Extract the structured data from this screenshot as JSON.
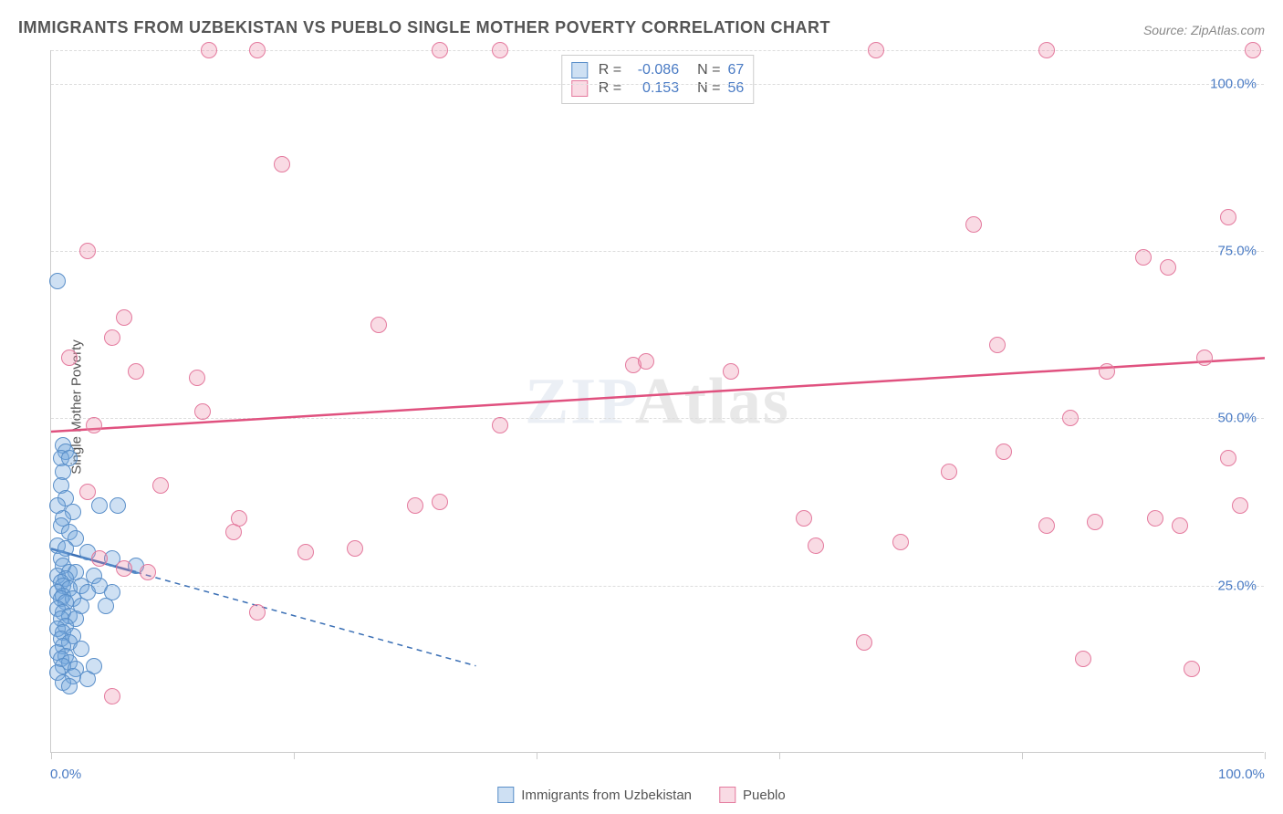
{
  "title": "IMMIGRANTS FROM UZBEKISTAN VS PUEBLO SINGLE MOTHER POVERTY CORRELATION CHART",
  "source": "Source: ZipAtlas.com",
  "y_axis_label": "Single Mother Poverty",
  "watermark_zip": "ZIP",
  "watermark_atlas": "Atlas",
  "chart": {
    "type": "scatter",
    "xlim": [
      0,
      100
    ],
    "ylim": [
      0,
      105
    ],
    "x_tick_labels": [
      {
        "pos": 0,
        "text": "0.0%"
      },
      {
        "pos": 100,
        "text": "100.0%"
      }
    ],
    "x_major_ticks": [
      0,
      20,
      40,
      60,
      80,
      100
    ],
    "y_gridlines": [
      25,
      50,
      75,
      100,
      105
    ],
    "y_tick_labels": [
      {
        "pos": 25,
        "text": "25.0%"
      },
      {
        "pos": 50,
        "text": "50.0%"
      },
      {
        "pos": 75,
        "text": "75.0%"
      },
      {
        "pos": 100,
        "text": "100.0%"
      }
    ],
    "background_color": "#ffffff",
    "grid_color": "#dddddd",
    "axis_color": "#cccccc",
    "tick_label_color": "#4a7bc4",
    "title_color": "#555555",
    "title_fontsize": 18,
    "label_fontsize": 15,
    "marker_radius": 9,
    "series": [
      {
        "name": "Immigrants from Uzbekistan",
        "fill": "rgba(115, 165, 220, 0.35)",
        "stroke": "#5a8fc9",
        "R": "-0.086",
        "N": "67",
        "trend": {
          "y_start": 30.5,
          "y_end": 27,
          "x_start": 0,
          "x_end": 7,
          "extrapolate_to": 35,
          "color": "#3a6fb5",
          "dash": true
        },
        "points": [
          [
            0.5,
            70.5
          ],
          [
            1.0,
            46
          ],
          [
            1.2,
            45
          ],
          [
            0.8,
            44
          ],
          [
            1.5,
            44
          ],
          [
            1.0,
            42
          ],
          [
            0.8,
            40
          ],
          [
            1.2,
            38
          ],
          [
            0.5,
            37
          ],
          [
            1.8,
            36
          ],
          [
            5.5,
            37
          ],
          [
            4.0,
            37
          ],
          [
            1.0,
            35
          ],
          [
            0.8,
            34
          ],
          [
            1.5,
            33
          ],
          [
            2.0,
            32
          ],
          [
            0.5,
            31
          ],
          [
            1.2,
            30.5
          ],
          [
            3.0,
            30
          ],
          [
            5.0,
            29
          ],
          [
            7.0,
            28
          ],
          [
            0.8,
            29
          ],
          [
            1.0,
            28
          ],
          [
            1.5,
            27
          ],
          [
            2.0,
            27
          ],
          [
            0.5,
            26.5
          ],
          [
            3.5,
            26.5
          ],
          [
            1.2,
            26
          ],
          [
            0.8,
            25.5
          ],
          [
            1.0,
            25
          ],
          [
            2.5,
            25
          ],
          [
            4.0,
            25
          ],
          [
            1.5,
            24.5
          ],
          [
            0.5,
            24
          ],
          [
            3.0,
            24
          ],
          [
            5.0,
            24
          ],
          [
            1.0,
            23.5
          ],
          [
            0.8,
            23
          ],
          [
            1.8,
            23
          ],
          [
            1.2,
            22.5
          ],
          [
            2.5,
            22
          ],
          [
            4.5,
            22
          ],
          [
            0.5,
            21.5
          ],
          [
            1.0,
            21
          ],
          [
            1.5,
            20.5
          ],
          [
            0.8,
            20
          ],
          [
            2.0,
            20
          ],
          [
            1.2,
            19
          ],
          [
            0.5,
            18.5
          ],
          [
            1.0,
            18
          ],
          [
            1.8,
            17.5
          ],
          [
            0.8,
            17
          ],
          [
            1.5,
            16.5
          ],
          [
            1.0,
            16
          ],
          [
            2.5,
            15.5
          ],
          [
            0.5,
            15
          ],
          [
            1.2,
            14.5
          ],
          [
            0.8,
            14
          ],
          [
            1.5,
            13.5
          ],
          [
            1.0,
            13
          ],
          [
            2.0,
            12.5
          ],
          [
            0.5,
            12
          ],
          [
            1.8,
            11.5
          ],
          [
            3.0,
            11
          ],
          [
            1.0,
            10.5
          ],
          [
            1.5,
            10
          ],
          [
            3.5,
            13
          ]
        ]
      },
      {
        "name": "Pueblo",
        "fill": "rgba(235, 135, 165, 0.30)",
        "stroke": "#e47a9e",
        "R": "0.153",
        "N": "56",
        "trend": {
          "y_start": 48,
          "y_end": 59,
          "x_start": 0,
          "x_end": 100,
          "color": "#e0517f",
          "dash": false
        },
        "points": [
          [
            3,
            75
          ],
          [
            13,
            105
          ],
          [
            17,
            105
          ],
          [
            19,
            88
          ],
          [
            32,
            105
          ],
          [
            37,
            105
          ],
          [
            68,
            105
          ],
          [
            82,
            105
          ],
          [
            99,
            105
          ],
          [
            76,
            79
          ],
          [
            90,
            74
          ],
          [
            92,
            72.5
          ],
          [
            97,
            80
          ],
          [
            3.5,
            49
          ],
          [
            5,
            62
          ],
          [
            6,
            65
          ],
          [
            7,
            57
          ],
          [
            9,
            40
          ],
          [
            12,
            56
          ],
          [
            12.5,
            51
          ],
          [
            15,
            33
          ],
          [
            15.5,
            35
          ],
          [
            17,
            21
          ],
          [
            21,
            30
          ],
          [
            25,
            30.5
          ],
          [
            27,
            64
          ],
          [
            30,
            37
          ],
          [
            32,
            37.5
          ],
          [
            37,
            49
          ],
          [
            48,
            58
          ],
          [
            49,
            58.5
          ],
          [
            56,
            57
          ],
          [
            62,
            35
          ],
          [
            63,
            31
          ],
          [
            67,
            16.5
          ],
          [
            70,
            31.5
          ],
          [
            74,
            42
          ],
          [
            78,
            61
          ],
          [
            78.5,
            45
          ],
          [
            82,
            34
          ],
          [
            84,
            50
          ],
          [
            86,
            34.5
          ],
          [
            87,
            57
          ],
          [
            91,
            35
          ],
          [
            93,
            34
          ],
          [
            94,
            12.5
          ],
          [
            95,
            59
          ],
          [
            97,
            44
          ],
          [
            98,
            37
          ],
          [
            85,
            14
          ],
          [
            3,
            39
          ],
          [
            5,
            8.5
          ],
          [
            6,
            27.5
          ],
          [
            1.5,
            59
          ],
          [
            4,
            29
          ],
          [
            8,
            27
          ]
        ]
      }
    ]
  },
  "legend_bottom": [
    {
      "swatch_fill": "rgba(115, 165, 220, 0.35)",
      "swatch_stroke": "#5a8fc9",
      "label": "Immigrants from Uzbekistan"
    },
    {
      "swatch_fill": "rgba(235, 135, 165, 0.30)",
      "swatch_stroke": "#e47a9e",
      "label": "Pueblo"
    }
  ]
}
